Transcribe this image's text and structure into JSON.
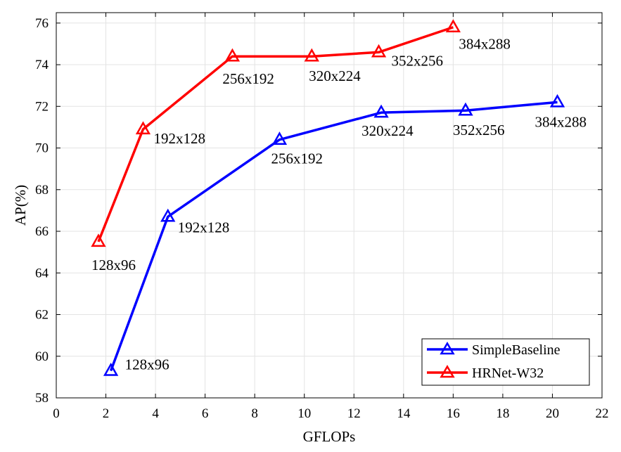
{
  "chart_data": {
    "type": "line",
    "xlabel": "GFLOPs",
    "ylabel": "AP(%)",
    "xlim": [
      0,
      22
    ],
    "ylim": [
      58,
      76.5
    ],
    "xticks": [
      0,
      2,
      4,
      6,
      8,
      10,
      12,
      14,
      16,
      18,
      20,
      22
    ],
    "yticks": [
      58,
      60,
      62,
      64,
      66,
      68,
      70,
      72,
      74,
      76
    ],
    "grid": true,
    "legend_position": "bottom-right",
    "series": [
      {
        "name": "SimpleBaseline",
        "color": "#0000ff",
        "marker": "triangle",
        "points": [
          {
            "x": 2.2,
            "y": 59.3,
            "label": "128x96"
          },
          {
            "x": 4.5,
            "y": 66.7,
            "label": "192x128"
          },
          {
            "x": 9.0,
            "y": 70.4,
            "label": "256x192"
          },
          {
            "x": 13.1,
            "y": 71.7,
            "label": "320x224"
          },
          {
            "x": 16.5,
            "y": 71.8,
            "label": "352x256"
          },
          {
            "x": 20.2,
            "y": 72.2,
            "label": "384x288"
          }
        ]
      },
      {
        "name": "HRNet-W32",
        "color": "#ff0000",
        "marker": "triangle",
        "points": [
          {
            "x": 1.7,
            "y": 65.5,
            "label": "128x96"
          },
          {
            "x": 3.5,
            "y": 70.9,
            "label": "192x128"
          },
          {
            "x": 7.1,
            "y": 74.4,
            "label": "256x192"
          },
          {
            "x": 10.3,
            "y": 74.4,
            "label": "320x224"
          },
          {
            "x": 13.0,
            "y": 74.6,
            "label": "352x256"
          },
          {
            "x": 16.0,
            "y": 75.8,
            "label": "384x288"
          }
        ]
      }
    ]
  }
}
